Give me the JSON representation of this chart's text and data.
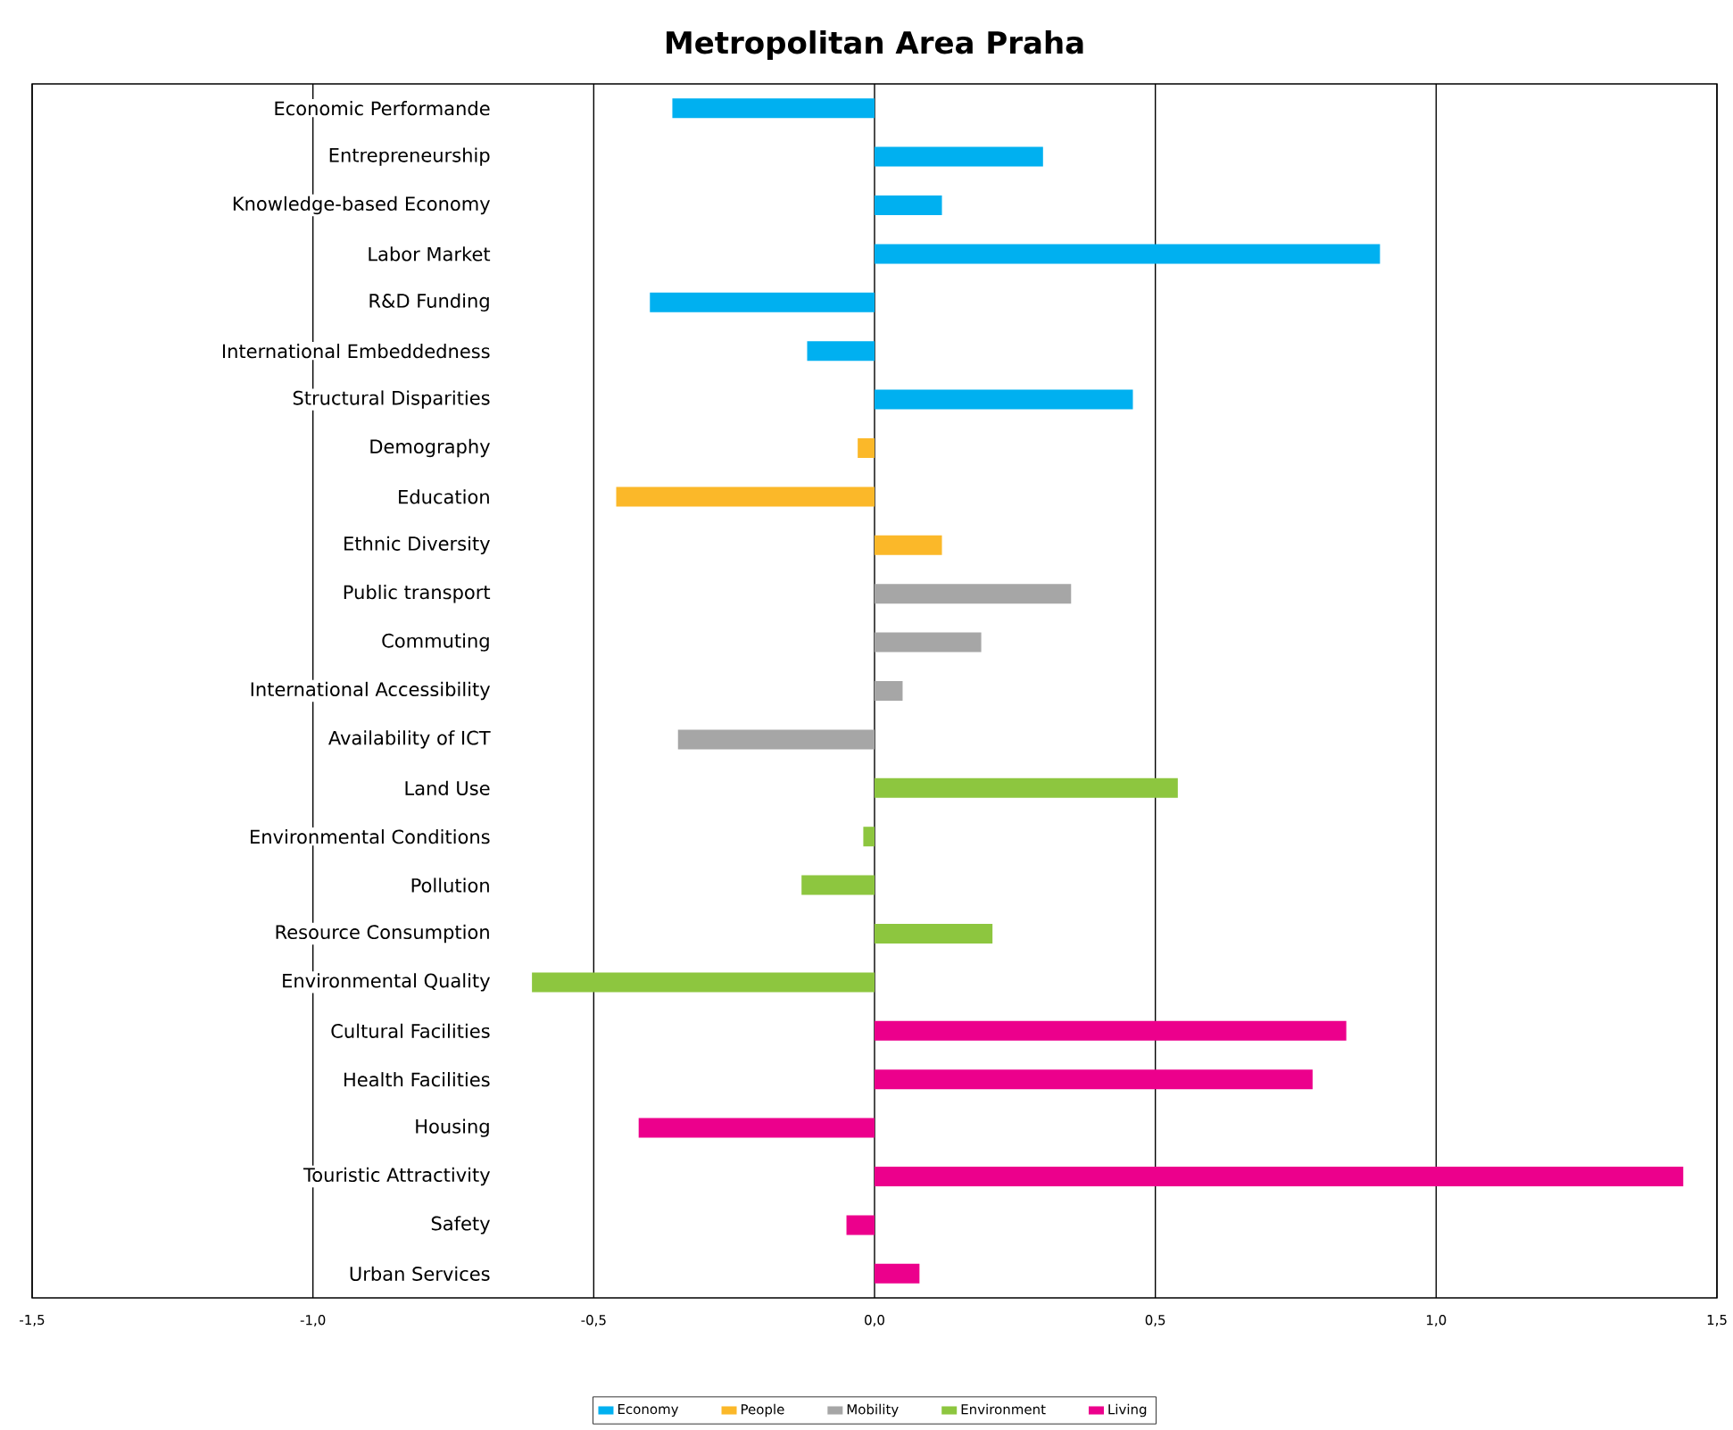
{
  "chart_data": {
    "type": "bar",
    "orientation": "horizontal",
    "title": "Metropolitan Area Praha",
    "categories": [
      "Economic Performande",
      "Entrepreneurship",
      "Knowledge-based Economy",
      "Labor Market",
      "R&D Funding",
      "International Embeddedness",
      "Structural Disparities",
      "Demography",
      "Education",
      "Ethnic Diversity",
      "Public transport",
      "Commuting",
      "International Accessibility",
      "Availability of ICT",
      "Land Use",
      "Environmental Conditions",
      "Pollution",
      "Resource Consumption",
      "Environmental Quality",
      "Cultural Facilities",
      "Health Facilities",
      "Housing",
      "Touristic Attractivity",
      "Safety",
      "Urban Services"
    ],
    "series": [
      {
        "name": "Economy",
        "color": "#00b0f0",
        "values": [
          -0.36,
          0.3,
          0.12,
          0.9,
          -0.4,
          -0.12,
          0.46,
          null,
          null,
          null,
          null,
          null,
          null,
          null,
          null,
          null,
          null,
          null,
          null,
          null,
          null,
          null,
          null,
          null,
          null
        ]
      },
      {
        "name": "People",
        "color": "#fbb829",
        "values": [
          null,
          null,
          null,
          null,
          null,
          null,
          null,
          -0.03,
          -0.46,
          0.12,
          null,
          null,
          null,
          null,
          null,
          null,
          null,
          null,
          null,
          null,
          null,
          null,
          null,
          null,
          null
        ]
      },
      {
        "name": "Mobility",
        "color": "#a6a6a6",
        "values": [
          null,
          null,
          null,
          null,
          null,
          null,
          null,
          null,
          null,
          null,
          0.35,
          0.19,
          0.05,
          -0.35,
          null,
          null,
          null,
          null,
          null,
          null,
          null,
          null,
          null,
          null,
          null
        ]
      },
      {
        "name": "Environment",
        "color": "#8dc63f",
        "values": [
          null,
          null,
          null,
          null,
          null,
          null,
          null,
          null,
          null,
          null,
          null,
          null,
          null,
          null,
          0.54,
          -0.02,
          -0.13,
          0.21,
          -0.61,
          null,
          null,
          null,
          null,
          null,
          null
        ]
      },
      {
        "name": "Living",
        "color": "#ec008c",
        "values": [
          null,
          null,
          null,
          null,
          null,
          null,
          null,
          null,
          null,
          null,
          null,
          null,
          null,
          null,
          null,
          null,
          null,
          null,
          null,
          0.84,
          0.78,
          -0.42,
          1.44,
          -0.05,
          0.08
        ]
      }
    ],
    "xlim": [
      -1.5,
      1.5
    ],
    "xticks": [
      {
        "value": -1.5,
        "label": "-1,5"
      },
      {
        "value": -1.0,
        "label": "-1,0"
      },
      {
        "value": -0.5,
        "label": "-0,5"
      },
      {
        "value": 0,
        "label": "0,0"
      },
      {
        "value": 0.5,
        "label": "0,5"
      },
      {
        "value": 1.0,
        "label": "1,0"
      },
      {
        "value": 1.5,
        "label": "1,5"
      }
    ],
    "grid": "x",
    "legend": "bottom"
  }
}
